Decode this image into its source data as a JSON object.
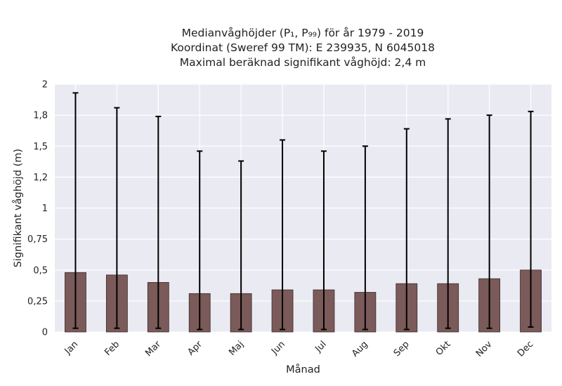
{
  "chart_data": {
    "type": "bar",
    "title_lines": [
      "Medianvåghöjder (P₁, P₉₉) för år 1979 - 2019",
      "Koordinat (Sweref 99 TM): E 239935, N 6045018",
      "Maximal beräknad signifikant våghöjd: 2,4 m"
    ],
    "xlabel": "Månad",
    "ylabel": "Signifikant våghöjd (m)",
    "categories": [
      "Jan",
      "Feb",
      "Mar",
      "Apr",
      "Maj",
      "Jun",
      "Jul",
      "Aug",
      "Sep",
      "Okt",
      "Nov",
      "Dec"
    ],
    "values": [
      0.48,
      0.46,
      0.4,
      0.31,
      0.31,
      0.34,
      0.34,
      0.32,
      0.39,
      0.39,
      0.43,
      0.5
    ],
    "p1": [
      0.03,
      0.03,
      0.03,
      0.02,
      0.02,
      0.02,
      0.02,
      0.02,
      0.02,
      0.03,
      0.03,
      0.04
    ],
    "p99": [
      1.93,
      1.81,
      1.74,
      1.46,
      1.38,
      1.55,
      1.46,
      1.5,
      1.64,
      1.72,
      1.75,
      1.78
    ],
    "ylim": [
      0,
      2
    ],
    "yticks": [
      0,
      0.25,
      0.5,
      0.75,
      1,
      1.25,
      1.5,
      1.75,
      2
    ],
    "ytick_labels": [
      "0",
      "0,25",
      "0,5",
      "0,75",
      "1",
      "1,2",
      "1,5",
      "1,8",
      "2"
    ],
    "grid": true,
    "colors": {
      "bar": "#7b5a5a",
      "bar_edge": "#3a2a2a",
      "error_bar": "#000000",
      "plot_background": "#eaeaf2",
      "grid": "#ffffff"
    }
  }
}
